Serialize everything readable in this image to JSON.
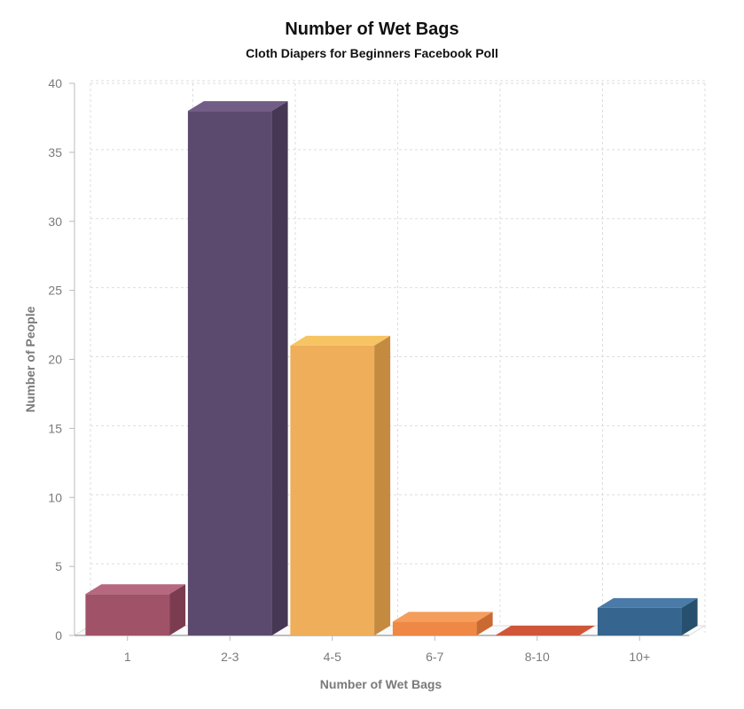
{
  "chart_data": {
    "type": "bar",
    "title": "Number of Wet Bags",
    "subtitle": "Cloth Diapers for Beginners Facebook Poll",
    "xlabel": "Number of Wet Bags",
    "ylabel": "Number of People",
    "categories": [
      "1",
      "2-3",
      "4-5",
      "6-7",
      "8-10",
      "10+"
    ],
    "values": [
      3,
      38,
      21,
      1,
      0,
      2
    ],
    "colors": [
      "#a05268",
      "#5c4a6e",
      "#efae5a",
      "#ef8745",
      "#d0563a",
      "#36658f"
    ],
    "side_colors": [
      "#7c3c50",
      "#463855",
      "#c48b40",
      "#c96a32",
      "#a9412a",
      "#27506f"
    ],
    "top_colors": [
      "#b56880",
      "#725d86",
      "#f6c462",
      "#f59d5b",
      "#d86a4f",
      "#4a7ba8"
    ],
    "ylim": [
      0,
      40
    ],
    "yticks": [
      0,
      5,
      10,
      15,
      20,
      25,
      30,
      35,
      40
    ],
    "grid": true,
    "style": "3d-bars"
  }
}
